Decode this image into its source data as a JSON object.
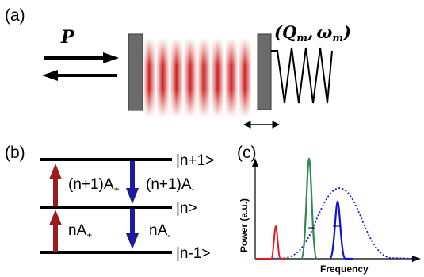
{
  "panel_a": {
    "label": "(a)",
    "power_symbol": "P",
    "mirror_params": "(Q_m, ω_m)",
    "mirror_params_parts": {
      "open": "(",
      "q": "Q",
      "q_sub": "m",
      "comma": ",",
      "omega": "ω",
      "omega_sub": "m",
      "close": ")"
    }
  },
  "panel_b": {
    "label": "(b)",
    "levels": [
      "|n+1>",
      "|n>",
      "|n-1>"
    ],
    "transitions": {
      "upper_up": "(n+1)A+",
      "upper_down": "(n+1)A-",
      "lower_up": "nA+",
      "lower_down": "nA-"
    },
    "transition_parts": {
      "upper_up": {
        "base": "(n+1)A",
        "sub": "+"
      },
      "upper_down": {
        "base": "(n+1)A",
        "sub": "-"
      },
      "lower_up": {
        "base": "nA",
        "sub": "+"
      },
      "lower_down": {
        "base": "nA",
        "sub": "-"
      }
    },
    "colors": {
      "up_arrow": "#9b1c1c",
      "down_arrow": "#1c1c9b"
    }
  },
  "panel_c": {
    "label": "(c)",
    "xlabel": "Frequency",
    "ylabel": "Power (a.u.)",
    "colors": {
      "red": "#e31a1c",
      "green": "#2e8b57",
      "blue": "#1010e0",
      "dotted": "#1a1acc"
    }
  }
}
